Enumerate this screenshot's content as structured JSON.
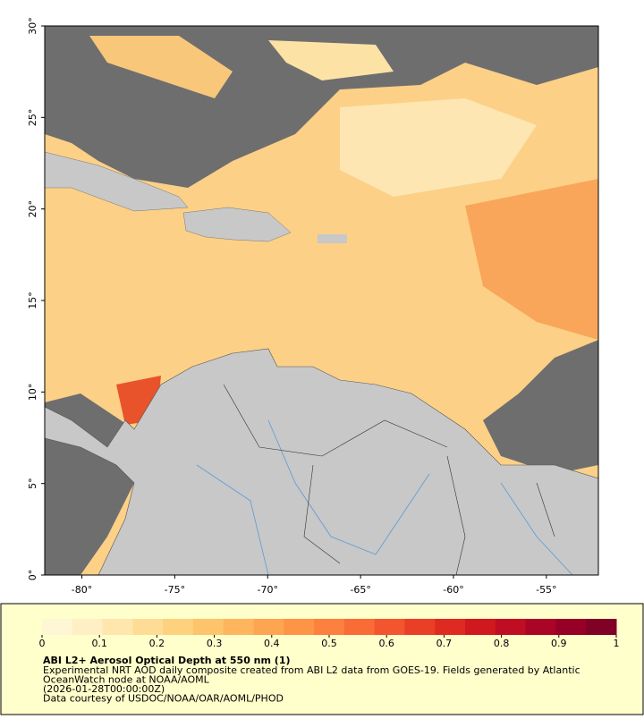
{
  "map": {
    "xlim": [
      -82,
      -52.2
    ],
    "ylim": [
      0,
      30
    ],
    "xticks": [
      {
        "value": -80,
        "label": "-80°"
      },
      {
        "value": -75,
        "label": "-75°"
      },
      {
        "value": -70,
        "label": "-70°"
      },
      {
        "value": -65,
        "label": "-65°"
      },
      {
        "value": -60,
        "label": "-60°"
      },
      {
        "value": -55,
        "label": "-55°"
      }
    ],
    "yticks": [
      {
        "value": 0,
        "label": "0°"
      },
      {
        "value": 5,
        "label": "5°"
      },
      {
        "value": 10,
        "label": "10°"
      },
      {
        "value": 15,
        "label": "15°"
      },
      {
        "value": 20,
        "label": "20°"
      },
      {
        "value": 25,
        "label": "25°"
      },
      {
        "value": 30,
        "label": "30°"
      }
    ]
  },
  "colorbar": {
    "lim": [
      0,
      1
    ],
    "ticks": [
      0,
      0.1,
      0.2,
      0.3,
      0.4,
      0.5,
      0.6,
      0.7,
      0.8,
      0.9,
      1
    ],
    "colors": [
      "#fff6d6",
      "#ffefc4",
      "#ffe6ad",
      "#ffdc96",
      "#fed17f",
      "#fec46c",
      "#feb55d",
      "#fda550",
      "#fd9446",
      "#fc813e",
      "#f96c36",
      "#f3552e",
      "#ea3f27",
      "#df2a22",
      "#d0181f",
      "#bf0d24",
      "#aa0426",
      "#960026",
      "#800026"
    ]
  },
  "caption": {
    "title": "ABI L2+ Aerosol Optical Depth at 550 nm (1)",
    "lines": [
      "Experimental NRT AOD daily composite created from ABI L2 data from GOES-19. Fields generated by Atlantic",
      "OceanWatch node at NOAA/AOML",
      "(2026-01-28T00:00:00Z)",
      "Data courtesy of USDOC/NOAA/OAR/AOML/PHOD"
    ]
  }
}
